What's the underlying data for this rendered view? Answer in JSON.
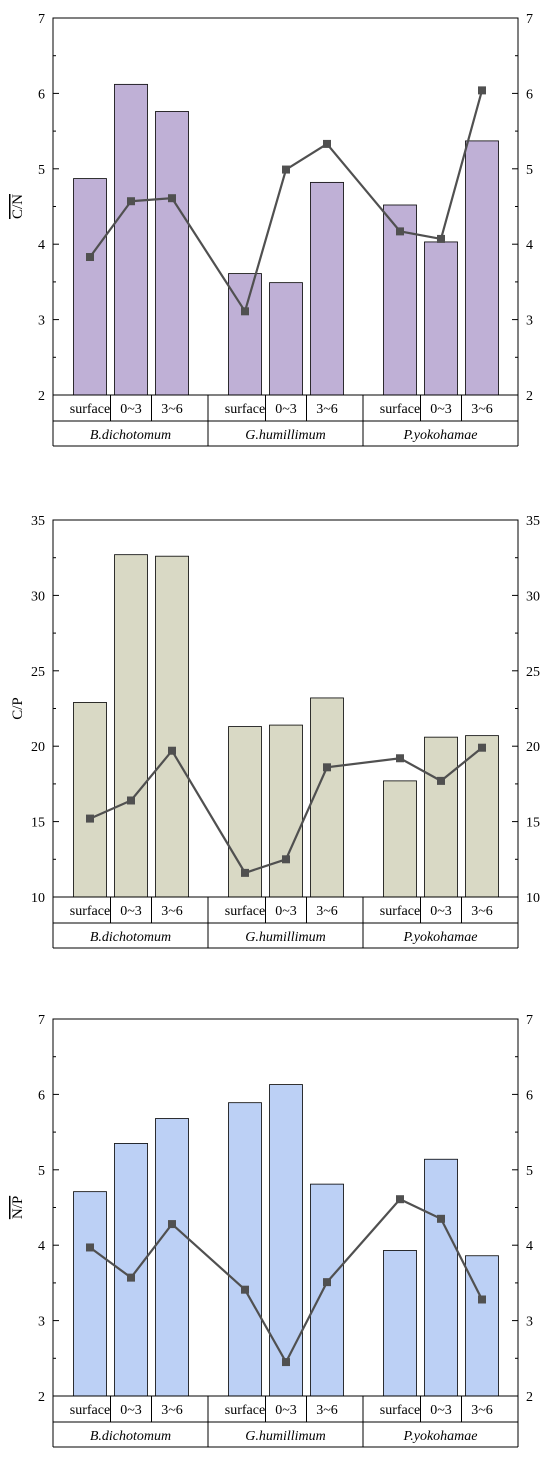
{
  "chart_data": [
    {
      "type": "bar",
      "ylabel": "C/N",
      "ylabel_overline": true,
      "ylim": [
        2,
        7
      ],
      "yticks": [
        "2",
        "3",
        "4",
        "5",
        "6",
        "7"
      ],
      "right_axis_ylim": [
        2,
        7
      ],
      "right_axis_yticks": [
        "2",
        "3",
        "4",
        "5",
        "6",
        "7"
      ],
      "grid": false,
      "bar_color": "#bfb0d6",
      "line_color": "#505050",
      "groups": [
        "B.dichotomum",
        "G.humillimum",
        "P.yokohamae"
      ],
      "categories": [
        "surface",
        "0~3",
        "3~6"
      ],
      "bar_values": [
        [
          4.87,
          6.12,
          5.76
        ],
        [
          3.61,
          3.49,
          4.82
        ],
        [
          4.52,
          4.03,
          5.37
        ]
      ],
      "line_values": [
        [
          3.83,
          4.57,
          4.61
        ],
        [
          3.11,
          4.99,
          5.33
        ],
        [
          4.17,
          4.07,
          6.04
        ]
      ]
    },
    {
      "type": "bar",
      "ylabel": "C/P",
      "ylabel_overline": false,
      "ylim": [
        10,
        35
      ],
      "yticks": [
        "10",
        "15",
        "20",
        "25",
        "30",
        "35"
      ],
      "right_axis_ylim": [
        10,
        35
      ],
      "right_axis_yticks": [
        "10",
        "15",
        "20",
        "25",
        "30",
        "35"
      ],
      "grid": false,
      "bar_color": "#d9d9c5",
      "line_color": "#505050",
      "groups": [
        "B.dichotomum",
        "G.humillimum",
        "P.yokohamae"
      ],
      "categories": [
        "surface",
        "0~3",
        "3~6"
      ],
      "bar_values": [
        [
          22.9,
          32.7,
          32.6
        ],
        [
          21.3,
          21.4,
          23.2
        ],
        [
          17.7,
          20.6,
          20.7
        ]
      ],
      "line_values": [
        [
          15.2,
          16.4,
          19.7
        ],
        [
          11.6,
          12.5,
          18.6
        ],
        [
          19.2,
          17.7,
          19.9
        ]
      ]
    },
    {
      "type": "bar",
      "ylabel": "N/P",
      "ylabel_overline": true,
      "ylim": [
        2,
        7
      ],
      "yticks": [
        "2",
        "3",
        "4",
        "5",
        "6",
        "7"
      ],
      "right_axis_ylim": [
        2,
        7
      ],
      "right_axis_yticks": [
        "2",
        "3",
        "4",
        "5",
        "6",
        "7"
      ],
      "grid": false,
      "bar_color": "#bcd0f5",
      "line_color": "#505050",
      "groups": [
        "B.dichotomum",
        "G.humillimum",
        "P.yokohamae"
      ],
      "categories": [
        "surface",
        "0~3",
        "3~6"
      ],
      "bar_values": [
        [
          4.71,
          5.35,
          5.68
        ],
        [
          5.89,
          6.13,
          4.81
        ],
        [
          3.93,
          5.14,
          3.86
        ]
      ],
      "line_values": [
        [
          3.97,
          3.57,
          4.28
        ],
        [
          3.41,
          2.45,
          3.51
        ],
        [
          4.61,
          4.35,
          3.28
        ]
      ]
    }
  ]
}
